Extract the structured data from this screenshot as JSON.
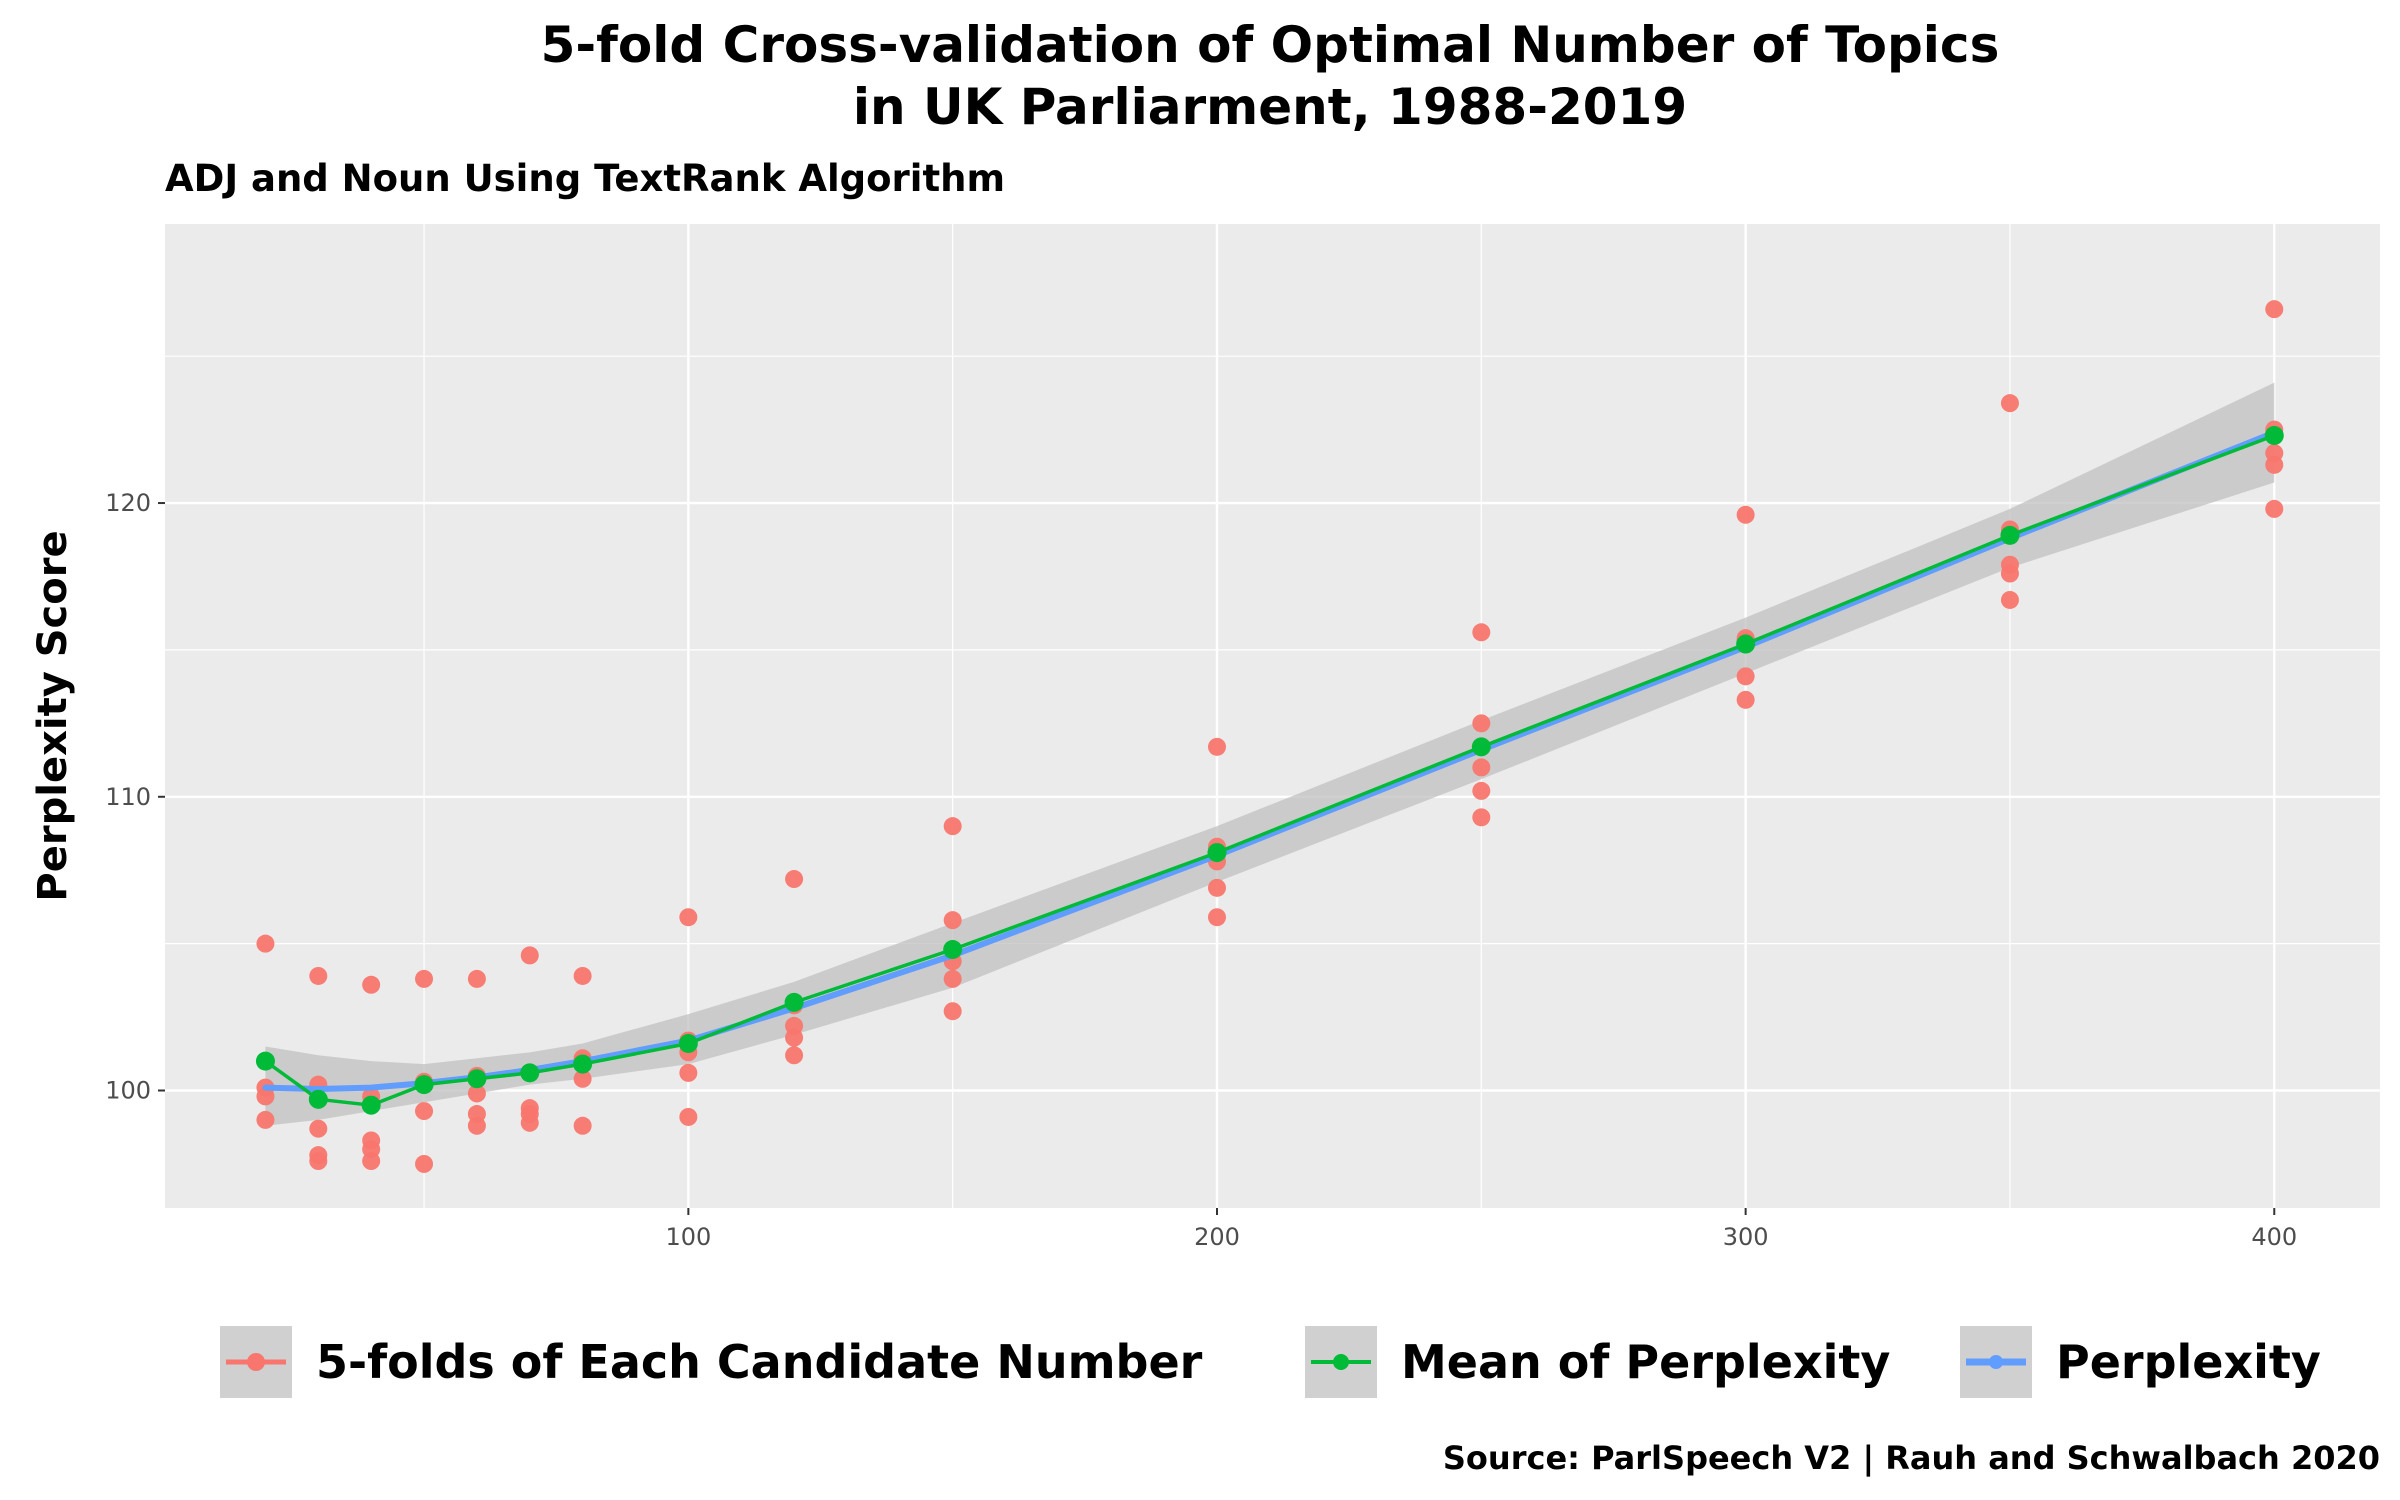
{
  "chart_data": {
    "type": "scatter",
    "title_lines": [
      "5-fold Cross-validation of Optimal Number of Topics",
      "in UK Parliarment, 1988-2019"
    ],
    "subtitle": "ADJ and Noun Using TextRank Algorithm",
    "xlabel": "",
    "ylabel": "Perplexity Score",
    "caption": "Source: ParlSpeech V2 | Rauh and Schwalbach 2020",
    "xlim": [
      1,
      420
    ],
    "ylim": [
      96.0,
      129.5
    ],
    "x_ticks": [
      100,
      200,
      300,
      400
    ],
    "y_ticks": [
      100,
      110,
      120
    ],
    "grid": true,
    "legend_position": "bottom",
    "colors": {
      "folds": "#f8766d",
      "mean": "#00ba38",
      "smooth": "#619cff",
      "ribbon": "#bebebe",
      "panel": "#ebebeb",
      "grid": "#ffffff"
    },
    "legend": [
      {
        "label": "5-folds of Each Candidate Number",
        "color": "#f8766d",
        "kind": "point"
      },
      {
        "label": "Mean of Perplexity",
        "color": "#00ba38",
        "kind": "line-point"
      },
      {
        "label": "Perplexity",
        "color": "#619cff",
        "kind": "smooth"
      }
    ],
    "series": [
      {
        "name": "5-folds of Each Candidate Number",
        "x": [
          20,
          20,
          20,
          20,
          20,
          30,
          30,
          30,
          30,
          30,
          40,
          40,
          40,
          40,
          40,
          50,
          50,
          50,
          50,
          50,
          60,
          60,
          60,
          60,
          60,
          70,
          70,
          70,
          70,
          70,
          80,
          80,
          80,
          80,
          80,
          100,
          100,
          100,
          100,
          100,
          120,
          120,
          120,
          120,
          120,
          150,
          150,
          150,
          150,
          150,
          200,
          200,
          200,
          200,
          200,
          250,
          250,
          250,
          250,
          250,
          300,
          300,
          300,
          300,
          300,
          350,
          350,
          350,
          350,
          350,
          400,
          400,
          400,
          400,
          400
        ],
        "y": [
          105.0,
          100.1,
          99.8,
          99.0,
          101.0,
          103.9,
          100.2,
          98.7,
          97.8,
          97.6,
          103.6,
          99.8,
          98.3,
          98.0,
          97.6,
          103.8,
          100.2,
          99.3,
          97.5,
          100.3,
          103.8,
          99.9,
          99.2,
          98.8,
          100.5,
          104.6,
          100.6,
          99.4,
          99.2,
          98.9,
          103.9,
          101.0,
          100.4,
          98.8,
          101.1,
          105.9,
          101.3,
          100.6,
          99.1,
          101.7,
          107.2,
          102.2,
          101.8,
          101.2,
          102.9,
          109.0,
          104.4,
          103.8,
          102.7,
          105.8,
          111.7,
          108.3,
          107.8,
          106.9,
          105.9,
          115.6,
          112.5,
          111.0,
          110.2,
          109.3,
          119.6,
          114.1,
          113.3,
          115.3,
          115.4,
          123.4,
          119.1,
          117.9,
          117.6,
          116.7,
          126.6,
          121.7,
          121.3,
          119.8,
          122.5
        ],
        "values_note": ""
      },
      {
        "name": "Mean of Perplexity",
        "x": [
          20,
          30,
          40,
          50,
          60,
          70,
          80,
          100,
          120,
          150,
          200,
          250,
          300,
          350,
          400
        ],
        "y": [
          101.0,
          99.7,
          99.5,
          100.2,
          100.4,
          100.6,
          100.9,
          101.6,
          103.0,
          104.8,
          108.1,
          111.7,
          115.2,
          118.9,
          122.3
        ]
      },
      {
        "name": "Perplexity",
        "x": [
          20,
          30,
          40,
          50,
          60,
          70,
          80,
          100,
          120,
          150,
          200,
          250,
          300,
          350,
          400
        ],
        "y": [
          100.1,
          100.05,
          100.1,
          100.25,
          100.45,
          100.7,
          101.0,
          101.7,
          102.8,
          104.6,
          108.0,
          111.6,
          115.1,
          118.8,
          122.4
        ],
        "ci_low": [
          98.8,
          99.0,
          99.3,
          99.6,
          99.9,
          100.2,
          100.4,
          100.9,
          101.9,
          103.5,
          107.1,
          110.6,
          114.2,
          117.8,
          120.7
        ],
        "ci_high": [
          101.5,
          101.2,
          101.0,
          100.9,
          101.1,
          101.3,
          101.6,
          102.6,
          103.7,
          105.7,
          109.0,
          112.6,
          116.1,
          119.8,
          124.1
        ]
      }
    ]
  }
}
